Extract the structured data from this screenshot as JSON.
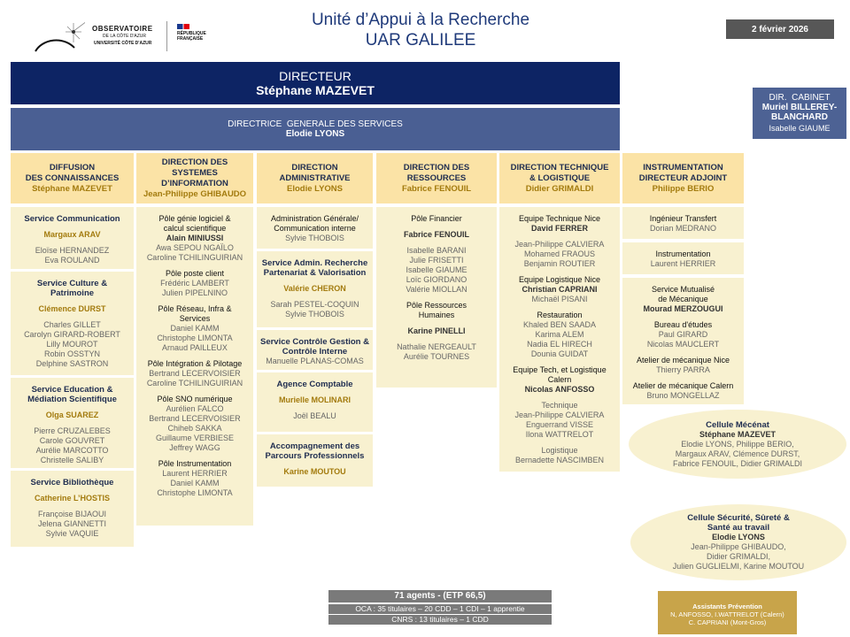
{
  "logo": {
    "name": "OBSERVATOIRE",
    "sub": "DE LA CÔTE D'AZUR",
    "univ": "UNIVERSITÉ CÔTE D'AZUR",
    "rf1": "RÉPUBLIQUE",
    "rf2": "FRANÇAISE"
  },
  "header": {
    "title": "Unité d’Appui à la Recherche",
    "subtitle": "UAR GALILEE",
    "date": "2 février 2026"
  },
  "director": {
    "role": "DIRECTEUR",
    "name": "Stéphane MAZEVET"
  },
  "dgs": {
    "role": "DIRECTRICE  GENERALE DES SERVICES",
    "name": "Elodie LYONS"
  },
  "cabinet": {
    "role": "DIR.  CABINET",
    "name": "Muriel BILLEREY-BLANCHARD",
    "member": "Isabelle GIAUME"
  },
  "columns": [
    {
      "title": [
        "DIFFUSION",
        "DES CONNAISSANCES"
      ],
      "head": "Stéphane MAZEVET",
      "boxes": [
        {
          "groups": [
            [
              {
                "t": "Service Communication",
                "k": "h"
              }
            ],
            [
              {
                "t": "Margaux ARAV",
                "k": "l"
              }
            ],
            [
              {
                "t": "Eloïse HERNANDEZ",
                "k": "n"
              },
              {
                "t": "Eva ROULAND",
                "k": "n"
              }
            ]
          ]
        },
        {
          "groups": [
            [
              {
                "t": "Service Culture &",
                "k": "h"
              },
              {
                "t": "Patrimoine",
                "k": "h"
              }
            ],
            [
              {
                "t": "Clémence DURST",
                "k": "l"
              }
            ],
            [
              {
                "t": "Charles GILLET",
                "k": "n"
              },
              {
                "t": "Carolyn GIRARD-ROBERT",
                "k": "n"
              },
              {
                "t": "Lilly MOUROT",
                "k": "n"
              },
              {
                "t": "Robin OSSTYN",
                "k": "n"
              },
              {
                "t": "Delphine SASTRON",
                "k": "n"
              }
            ]
          ]
        },
        {
          "groups": [
            [
              {
                "t": "Service Education &",
                "k": "h"
              },
              {
                "t": "Médiation Scientifique",
                "k": "h"
              }
            ],
            [
              {
                "t": "Olga SUAREZ",
                "k": "l"
              }
            ],
            [
              {
                "t": "Pierre CRUZALEBES",
                "k": "n"
              },
              {
                "t": "Carole GOUVRET",
                "k": "n"
              },
              {
                "t": "Aurélie MARCOTTO",
                "k": "n"
              },
              {
                "t": "Christelle SALIBY",
                "k": "n"
              }
            ]
          ]
        },
        {
          "groups": [
            [
              {
                "t": "Service Bibliothèque",
                "k": "h"
              }
            ],
            [
              {
                "t": "Catherine L’HOSTIS",
                "k": "l"
              }
            ],
            [
              {
                "t": "Françoise BIJAOUI",
                "k": "n"
              },
              {
                "t": "Jelena GIANNETTI",
                "k": "n"
              },
              {
                "t": "Sylvie VAQUIE",
                "k": "n"
              }
            ]
          ]
        }
      ]
    },
    {
      "title": [
        "DIRECTION DES",
        "SYSTEMES",
        "D’INFORMATION"
      ],
      "head": "Jean-Philippe GHIBAUDO",
      "boxes": [
        {
          "groups": [
            [
              {
                "t": "Pôle génie logiciel &",
                "k": "t"
              },
              {
                "t": "calcul scientifique",
                "k": "t"
              },
              {
                "t": "Alain MINIUSSI",
                "k": "b"
              },
              {
                "t": "Awa SEPOU NGAÏLO",
                "k": "n"
              },
              {
                "t": "Caroline TCHILINGUIRIAN",
                "k": "n"
              }
            ],
            [
              {
                "t": "Pôle poste client",
                "k": "t"
              },
              {
                "t": "Frédéric LAMBERT",
                "k": "n"
              },
              {
                "t": "Julien PIPELNINO",
                "k": "n"
              }
            ],
            [
              {
                "t": "Pôle Réseau, Infra &",
                "k": "t"
              },
              {
                "t": "Services",
                "k": "t"
              },
              {
                "t": "Daniel KAMM",
                "k": "n"
              },
              {
                "t": "Christophe LIMONTA",
                "k": "n"
              },
              {
                "t": "Arnaud PAILLEUX",
                "k": "n"
              }
            ],
            [
              {
                "t": "Pôle Intégration & Pilotage",
                "k": "t"
              },
              {
                "t": "Bertrand LECERVOISIER",
                "k": "n"
              },
              {
                "t": "Caroline TCHILINGUIRIAN",
                "k": "n"
              }
            ],
            [
              {
                "t": "Pôle SNO numérique",
                "k": "t"
              },
              {
                "t": "Aurélien FALCO",
                "k": "n"
              },
              {
                "t": "Bertrand LECERVOISIER",
                "k": "n"
              },
              {
                "t": "Chiheb SAKKA",
                "k": "n"
              },
              {
                "t": "Guillaume VERBIESE",
                "k": "n"
              },
              {
                "t": "Jeffrey WAGG",
                "k": "n"
              }
            ],
            [
              {
                "t": "Pôle Instrumentation",
                "k": "t"
              },
              {
                "t": "Laurent HERRIER",
                "k": "n"
              },
              {
                "t": "Daniel KAMM",
                "k": "n"
              },
              {
                "t": "Christophe LIMONTA",
                "k": "n"
              }
            ]
          ]
        }
      ]
    },
    {
      "title": [
        "DIRECTION",
        "ADMINISTRATIVE"
      ],
      "head": "Elodie LYONS",
      "boxes": [
        {
          "groups": [
            [
              {
                "t": "Administration Générale/",
                "k": "t"
              },
              {
                "t": "Communication interne",
                "k": "t"
              },
              {
                "t": "Sylvie THOBOIS",
                "k": "n"
              }
            ]
          ]
        },
        {
          "groups": [
            [
              {
                "t": "Service Admin. Recherche",
                "k": "h"
              },
              {
                "t": "Partenariat & Valorisation",
                "k": "h"
              }
            ],
            [
              {
                "t": "Valérie CHERON",
                "k": "l"
              }
            ],
            [
              {
                "t": "Sarah PESTEL-COQUIN",
                "k": "n"
              },
              {
                "t": "Sylvie THOBOIS",
                "k": "n"
              }
            ]
          ]
        },
        {
          "groups": [
            [
              {
                "t": "Service Contrôle Gestion &",
                "k": "h"
              },
              {
                "t": "Contrôle Interne",
                "k": "h"
              },
              {
                "t": "Manuelle PLANAS-COMAS",
                "k": "n"
              }
            ]
          ]
        },
        {
          "groups": [
            [
              {
                "t": "Agence Comptable",
                "k": "h"
              }
            ],
            [
              {
                "t": "Murielle MOLINARI",
                "k": "l"
              }
            ],
            [
              {
                "t": "Joël BEALU",
                "k": "n"
              }
            ]
          ]
        },
        {
          "groups": [
            [
              {
                "t": "Accompagnement des",
                "k": "h"
              },
              {
                "t": "Parcours Professionnels",
                "k": "h"
              }
            ],
            [
              {
                "t": "Karine MOUTOU",
                "k": "l"
              }
            ]
          ]
        }
      ]
    },
    {
      "title": [
        "DIRECTION DES",
        "RESSOURCES"
      ],
      "head": "Fabrice FENOUIL",
      "boxes": [
        {
          "groups": [
            [
              {
                "t": "Pôle Financier",
                "k": "t"
              }
            ],
            [
              {
                "t": "Fabrice FENOUIL",
                "k": "b"
              }
            ],
            [
              {
                "t": "Isabelle BARANI",
                "k": "n"
              },
              {
                "t": "Julie FRISETTI",
                "k": "n"
              },
              {
                "t": "Isabelle GIAUME",
                "k": "n"
              },
              {
                "t": "Loïc GIORDANO",
                "k": "n"
              },
              {
                "t": "Valérie MIOLLAN",
                "k": "n"
              }
            ],
            [
              {
                "t": "Pôle Ressources",
                "k": "t"
              },
              {
                "t": "Humaines",
                "k": "t"
              }
            ],
            [
              {
                "t": "Karine PINELLI",
                "k": "b"
              }
            ],
            [
              {
                "t": "Nathalie NERGEAULT",
                "k": "n"
              },
              {
                "t": "Aurélie TOURNES",
                "k": "n"
              }
            ]
          ]
        }
      ]
    },
    {
      "title": [
        "DIRECTION TECHNIQUE",
        "& LOGISTIQUE"
      ],
      "head": "Didier GRIMALDI",
      "boxes": [
        {
          "groups": [
            [
              {
                "t": "Equipe Technique Nice",
                "k": "t"
              },
              {
                "t": "David FERRER",
                "k": "b"
              }
            ],
            [
              {
                "t": "Jean-Philippe CALVIERA",
                "k": "n"
              },
              {
                "t": "Mohamed FRAOUS",
                "k": "n"
              },
              {
                "t": "Benjamin ROUTIER",
                "k": "n"
              }
            ],
            [
              {
                "t": "Equipe Logistique Nice",
                "k": "t"
              },
              {
                "t": "Christian CAPRIANI",
                "k": "b"
              },
              {
                "t": "Michaël PISANI",
                "k": "n"
              }
            ],
            [
              {
                "t": "Restauration",
                "k": "t"
              },
              {
                "t": "Khaled BEN SAADA",
                "k": "n"
              },
              {
                "t": "Karima ALEM",
                "k": "n"
              },
              {
                "t": "Nadia EL HIRECH",
                "k": "n"
              },
              {
                "t": "Dounia GUIDAT",
                "k": "n"
              }
            ],
            [
              {
                "t": "Equipe Tech, et Logistique",
                "k": "t"
              },
              {
                "t": "Calern",
                "k": "t"
              },
              {
                "t": "Nicolas ANFOSSO",
                "k": "b"
              }
            ],
            [
              {
                "t": "Technique",
                "k": "n"
              },
              {
                "t": "Jean-Philippe CALVIERA",
                "k": "n"
              },
              {
                "t": "Enguerrand VISSE",
                "k": "n"
              },
              {
                "t": "Ilona WATTRELOT",
                "k": "n"
              }
            ],
            [
              {
                "t": "Logistique",
                "k": "n"
              },
              {
                "t": "Bernadette NASCIMBEN",
                "k": "n"
              }
            ]
          ]
        }
      ]
    },
    {
      "title": [
        "INSTRUMENTATION",
        "DIRECTEUR ADJOINT"
      ],
      "head": "Philippe BERIO",
      "boxes": [
        {
          "groups": [
            [
              {
                "t": "Ingénieur Transfert",
                "k": "t"
              },
              {
                "t": "Dorian MEDRANO",
                "k": "n"
              }
            ]
          ]
        },
        {
          "groups": [
            [
              {
                "t": "Instrumentation",
                "k": "t"
              },
              {
                "t": "Laurent HERRIER",
                "k": "n"
              }
            ]
          ]
        },
        {
          "groups": [
            [
              {
                "t": "Service Mutualisé",
                "k": "t"
              },
              {
                "t": "de Mécanique",
                "k": "t"
              },
              {
                "t": "Mourad MERZOUGUI",
                "k": "b"
              }
            ],
            [
              {
                "t": "Bureau d'études",
                "k": "t"
              },
              {
                "t": "Paul GIRARD",
                "k": "n"
              },
              {
                "t": "Nicolas MAUCLERT",
                "k": "n"
              }
            ],
            [
              {
                "t": "Atelier de mécanique Nice",
                "k": "t"
              },
              {
                "t": "Thierry PARRA",
                "k": "n"
              }
            ],
            [
              {
                "t": "Atelier de mécanique Calern",
                "k": "t"
              },
              {
                "t": "Bruno MONGELLAZ",
                "k": "n"
              }
            ]
          ]
        }
      ]
    }
  ],
  "cells": [
    {
      "title": [
        "Cellule Mécénat"
      ],
      "lead": "Stéphane MAZEVET",
      "members": [
        "Elodie LYONS, Philippe BERIO,",
        "Margaux ARAV, Clémence DURST,",
        "Fabrice FENOUIL, Didier GRIMALDI"
      ]
    },
    {
      "title": [
        "Cellule Sécurité, Sûreté &",
        "Santé au travail"
      ],
      "lead": "Elodie LYONS",
      "members": [
        "Jean-Philippe GHIBAUDO,",
        "Didier GRIMALDI,",
        "Julien GUGLIELMI, Karine MOUTOU"
      ]
    }
  ],
  "assistants": {
    "title": "Assistants  Prévention",
    "lines": [
      "N, ANFOSSO, I.WATTRELOT (Calern)",
      "C. CAPRIANI (Mont-Gros)"
    ]
  },
  "stats": {
    "total": "71 agents -  (ETP 66,5)",
    "oca": "OCA : 35 titulaires – 20 CDD – 1 CDI – 1 apprentie",
    "cnrs": "CNRS :  13 titulaires – 1 CDD"
  },
  "colors": {
    "navy": "#0d2464",
    "dgs": "#4a5f93",
    "header": "#fbe3a6",
    "box": "#f8f1d0",
    "gold": "#c8a44a",
    "leader": "#a37b0e"
  }
}
